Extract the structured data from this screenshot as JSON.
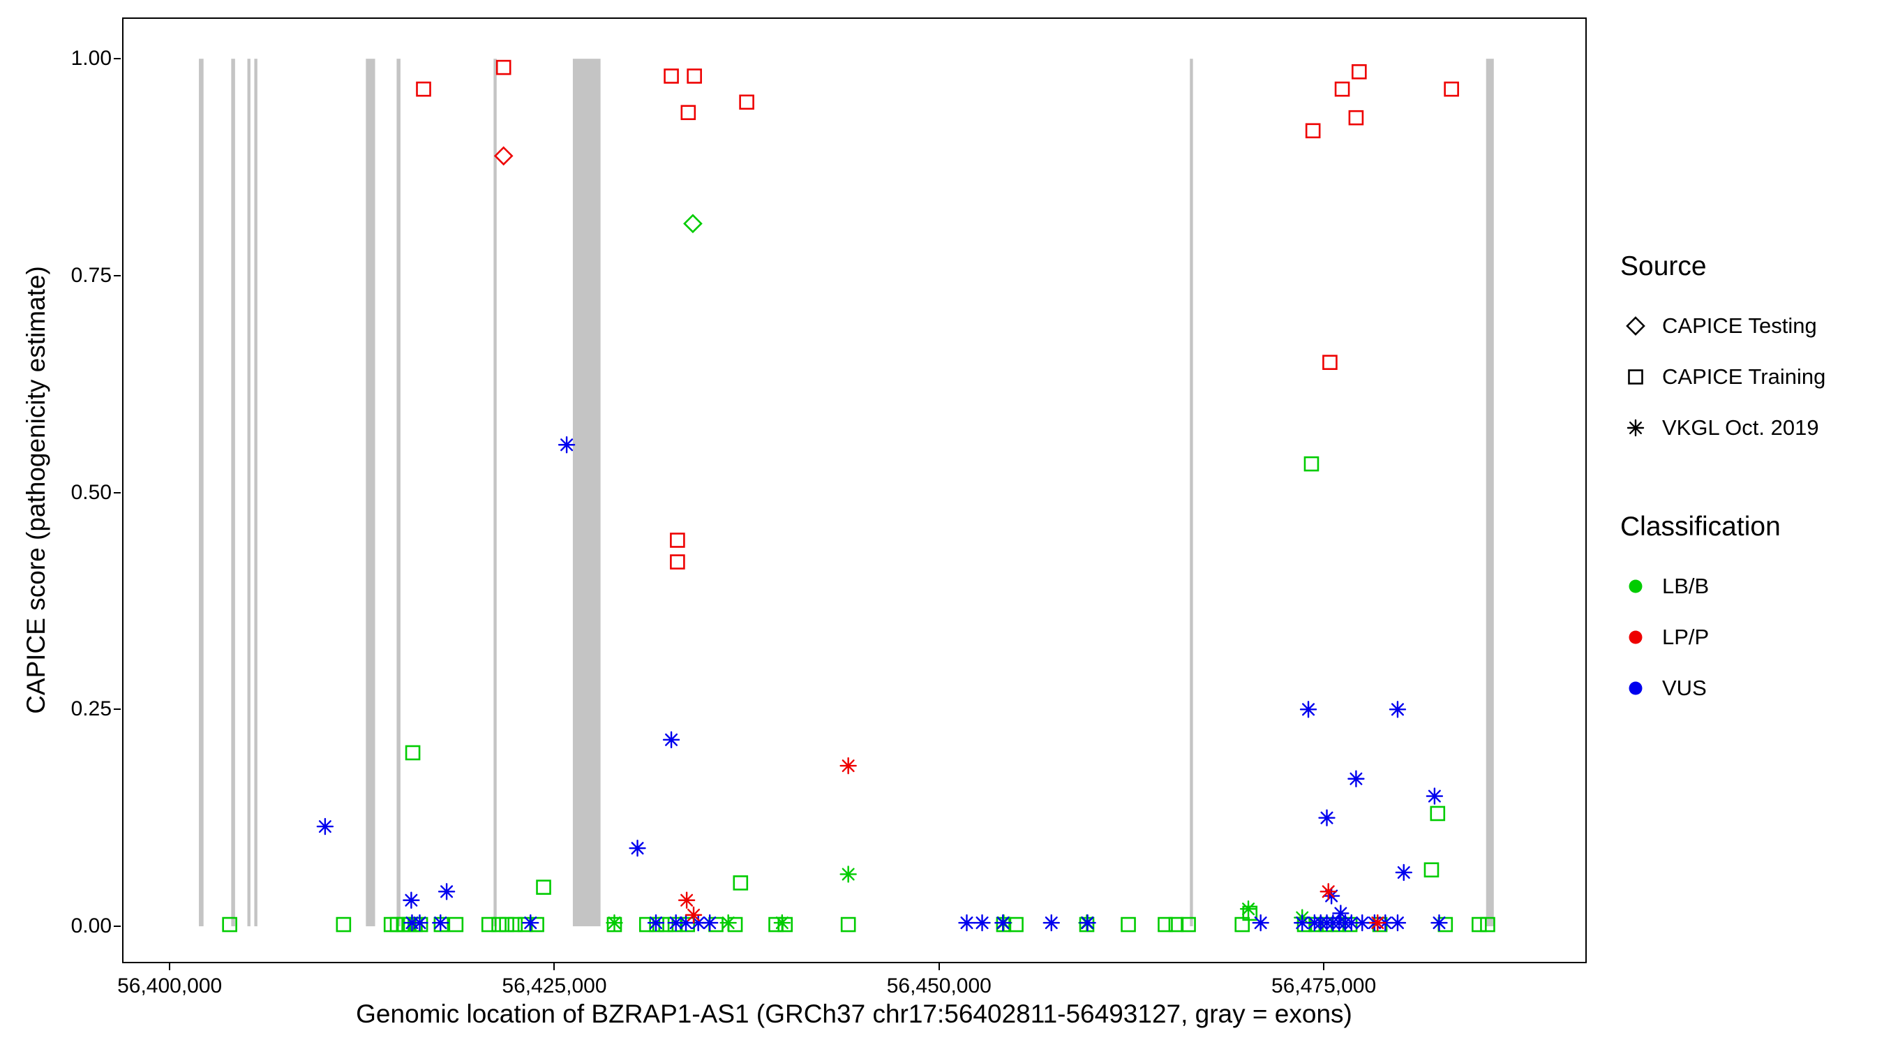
{
  "figure": {
    "x_axis_title": "Genomic location of BZRAP1-AS1 (GRCh37 chr17:56402811-56493127, gray = exons)",
    "y_axis_title": "CAPICE score (pathogenicity estimate)"
  },
  "legend": {
    "source": {
      "title": "Source",
      "items": [
        {
          "label": "CAPICE Testing",
          "shape": "diamond"
        },
        {
          "label": "CAPICE Training",
          "shape": "square"
        },
        {
          "label": "VKGL Oct. 2019",
          "shape": "asterisk"
        }
      ]
    },
    "classification": {
      "title": "Classification",
      "items": [
        {
          "label": "LB/B",
          "color": "#00CC00"
        },
        {
          "label": "LP/P",
          "color": "#EE0000"
        },
        {
          "label": "VUS",
          "color": "#0000EE"
        }
      ]
    }
  },
  "chart_data": {
    "type": "scatter",
    "title": "",
    "xlabel": "Genomic location of BZRAP1-AS1 (GRCh37 chr17:56402811-56493127, gray = exons)",
    "ylabel": "CAPICE score (pathogenicity estimate)",
    "grid": "none",
    "legend_position": "right",
    "x_domain": [
      56397000,
      56492000
    ],
    "y_domain": [
      -0.041,
      1.046
    ],
    "x_ticks": [
      {
        "value": 56400000,
        "label": "56,400,000"
      },
      {
        "value": 56425000,
        "label": "56,425,000"
      },
      {
        "value": 56450000,
        "label": "56,450,000"
      },
      {
        "value": 56475000,
        "label": "56,475,000"
      }
    ],
    "y_ticks": [
      {
        "value": 0.0,
        "label": "0.00"
      },
      {
        "value": 0.25,
        "label": "0.25"
      },
      {
        "value": 0.5,
        "label": "0.50"
      },
      {
        "value": 0.75,
        "label": "0.75"
      },
      {
        "value": 1.0,
        "label": "1.00"
      }
    ],
    "exon_color": "#C4C4C4",
    "exons": [
      [
        56401900,
        56402200
      ],
      [
        56404000,
        56404250
      ],
      [
        56405050,
        56405250
      ],
      [
        56405500,
        56405700
      ],
      [
        56412750,
        56413350
      ],
      [
        56414750,
        56415000
      ],
      [
        56421050,
        56421250
      ],
      [
        56426200,
        56428000
      ],
      [
        56466300,
        56466500
      ],
      [
        56485550,
        56486050
      ]
    ],
    "colors": {
      "LB/B": "#00CC00",
      "LP/P": "#EE0000",
      "VUS": "#0000EE"
    },
    "shapes": {
      "CAPICE Testing": "diamond",
      "CAPICE Training": "square",
      "VKGL Oct. 2019": "asterisk"
    },
    "series": [
      {
        "source": "CAPICE Training",
        "classification": "LB/B",
        "points": [
          [
            56415800,
            0.2
          ],
          [
            56474200,
            0.533
          ],
          [
            56424300,
            0.045
          ],
          [
            56437100,
            0.05
          ],
          [
            56482400,
            0.13
          ],
          [
            56482000,
            0.065
          ],
          [
            56470200,
            0.015
          ],
          [
            56403900,
            0.002
          ],
          [
            56411300,
            0.002
          ],
          [
            56414400,
            0.002
          ],
          [
            56414800,
            0.002
          ],
          [
            56415200,
            0.002
          ],
          [
            56415550,
            0.002
          ],
          [
            56415950,
            0.002
          ],
          [
            56416300,
            0.002
          ],
          [
            56417650,
            0.002
          ],
          [
            56418600,
            0.002
          ],
          [
            56420750,
            0.002
          ],
          [
            56421400,
            0.002
          ],
          [
            56421900,
            0.002
          ],
          [
            56422450,
            0.002
          ],
          [
            56423100,
            0.002
          ],
          [
            56423850,
            0.002
          ],
          [
            56428900,
            0.002
          ],
          [
            56431000,
            0.002
          ],
          [
            56431650,
            0.002
          ],
          [
            56432250,
            0.002
          ],
          [
            56432850,
            0.002
          ],
          [
            56433650,
            0.002
          ],
          [
            56435500,
            0.002
          ],
          [
            56436750,
            0.002
          ],
          [
            56439400,
            0.002
          ],
          [
            56440000,
            0.002
          ],
          [
            56444100,
            0.002
          ],
          [
            56454200,
            0.002
          ],
          [
            56455000,
            0.002
          ],
          [
            56459600,
            0.002
          ],
          [
            56462300,
            0.002
          ],
          [
            56464700,
            0.002
          ],
          [
            56465400,
            0.002
          ],
          [
            56466200,
            0.002
          ],
          [
            56469700,
            0.002
          ],
          [
            56473750,
            0.002
          ],
          [
            56474500,
            0.002
          ],
          [
            56475150,
            0.002
          ],
          [
            56475950,
            0.002
          ],
          [
            56476700,
            0.002
          ],
          [
            56478650,
            0.002
          ],
          [
            56482900,
            0.002
          ],
          [
            56485100,
            0.002
          ],
          [
            56485650,
            0.002
          ]
        ]
      },
      {
        "source": "CAPICE Training",
        "classification": "LP/P",
        "points": [
          [
            56416500,
            0.965
          ],
          [
            56421700,
            0.99
          ],
          [
            56432600,
            0.98
          ],
          [
            56434100,
            0.98
          ],
          [
            56433700,
            0.938
          ],
          [
            56437500,
            0.95
          ],
          [
            56433000,
            0.445
          ],
          [
            56433000,
            0.42
          ],
          [
            56474300,
            0.917
          ],
          [
            56476200,
            0.965
          ],
          [
            56477300,
            0.985
          ],
          [
            56477100,
            0.932
          ],
          [
            56475400,
            0.65
          ],
          [
            56483300,
            0.965
          ]
        ]
      },
      {
        "source": "VKGL Oct. 2019",
        "classification": "LB/B",
        "points": [
          [
            56444100,
            0.06
          ],
          [
            56470100,
            0.02
          ],
          [
            56473600,
            0.01
          ],
          [
            56428900,
            0.004
          ],
          [
            56436300,
            0.004
          ],
          [
            56439800,
            0.004
          ],
          [
            56459600,
            0.004
          ],
          [
            56454200,
            0.004
          ]
        ]
      },
      {
        "source": "VKGL Oct. 2019",
        "classification": "VUS",
        "points": [
          [
            56410100,
            0.115
          ],
          [
            56425800,
            0.555
          ],
          [
            56432600,
            0.215
          ],
          [
            56430400,
            0.09
          ],
          [
            56415700,
            0.03
          ],
          [
            56418000,
            0.04
          ],
          [
            56474000,
            0.25
          ],
          [
            56479800,
            0.25
          ],
          [
            56477100,
            0.17
          ],
          [
            56482200,
            0.15
          ],
          [
            56475200,
            0.125
          ],
          [
            56480200,
            0.062
          ],
          [
            56475500,
            0.035
          ],
          [
            56476100,
            0.015
          ],
          [
            56415750,
            0.004
          ],
          [
            56416250,
            0.004
          ],
          [
            56417600,
            0.004
          ],
          [
            56423450,
            0.004
          ],
          [
            56431600,
            0.004
          ],
          [
            56432900,
            0.004
          ],
          [
            56433550,
            0.004
          ],
          [
            56434350,
            0.004
          ],
          [
            56435100,
            0.004
          ],
          [
            56451800,
            0.004
          ],
          [
            56452800,
            0.004
          ],
          [
            56454150,
            0.004
          ],
          [
            56457300,
            0.004
          ],
          [
            56459650,
            0.004
          ],
          [
            56470900,
            0.004
          ],
          [
            56473600,
            0.004
          ],
          [
            56474400,
            0.004
          ],
          [
            56474800,
            0.004
          ],
          [
            56475200,
            0.004
          ],
          [
            56475600,
            0.004
          ],
          [
            56476000,
            0.004
          ],
          [
            56476400,
            0.004
          ],
          [
            56476800,
            0.004
          ],
          [
            56477500,
            0.004
          ],
          [
            56478300,
            0.004
          ],
          [
            56479000,
            0.004
          ],
          [
            56479800,
            0.004
          ],
          [
            56482500,
            0.004
          ]
        ]
      },
      {
        "source": "VKGL Oct. 2019",
        "classification": "LP/P",
        "points": [
          [
            56444100,
            0.185
          ],
          [
            56433600,
            0.03
          ],
          [
            56434050,
            0.013
          ],
          [
            56475300,
            0.04
          ],
          [
            56478500,
            0.004
          ]
        ]
      },
      {
        "source": "CAPICE Testing",
        "classification": "LP/P",
        "points": [
          [
            56421700,
            0.888
          ]
        ]
      },
      {
        "source": "CAPICE Testing",
        "classification": "LB/B",
        "points": [
          [
            56434000,
            0.81
          ]
        ]
      }
    ]
  }
}
